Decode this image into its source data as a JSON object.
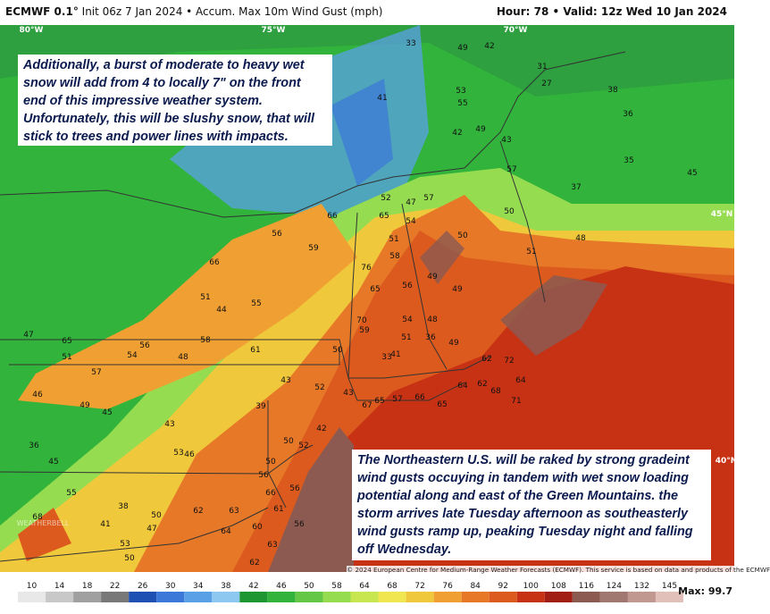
{
  "header": {
    "model": "ECMWF 0.1°",
    "info": "Init 06z 7 Jan 2024 • Accum. Max 10m Wind Gust (mph)",
    "valid": "Hour: 78 • Valid: 12z Wed 10 Jan 2024"
  },
  "annotations": [
    "Additionally, a burst of moderate to heavy wet snow will add from 4 to locally 7\" on the front end of this impressive weather system. Unfortunately, this will be slushy snow, that will stick to trees and power lines with impacts.",
    "The Northeastern U.S. will be raked by strong gradeint wind gusts occuying in tandem with wet snow loading potential along and east of the Green Mountains. the storm arrives late Tuesday afternoon as southeasterly wind gusts ramp up, peaking Tuesday night and falling off Wednesday."
  ],
  "grid_labels": [
    "80°W",
    "75°W",
    "70°W",
    "45°N",
    "40°N"
  ],
  "map_values": [
    33,
    49,
    42,
    31,
    27,
    53,
    55,
    41,
    49,
    42,
    43,
    38,
    36,
    35,
    45,
    37,
    57,
    48,
    51,
    50,
    50,
    47,
    57,
    52,
    65,
    54,
    51,
    58,
    76,
    65,
    56,
    49,
    49,
    70,
    59,
    54,
    48,
    51,
    36,
    49,
    50,
    33,
    41,
    62,
    72,
    64,
    62,
    68,
    64,
    71,
    65,
    66,
    57,
    65,
    67,
    43,
    66,
    59,
    56,
    66,
    51,
    44,
    55,
    61,
    58,
    48,
    56,
    54,
    57,
    65,
    51,
    47,
    46,
    49,
    45,
    43,
    39,
    43,
    52,
    42,
    52,
    50,
    50,
    56,
    66,
    56,
    61,
    60,
    63,
    62,
    64,
    68,
    38,
    53,
    50,
    47,
    41,
    55,
    45,
    36,
    46,
    53,
    50,
    56,
    63,
    62
  ],
  "logo": "WEATHERBELL",
  "copyright": "© 2024 European Centre for Medium-Range Weather Forecasts (ECMWF). This service is based on data and products of the ECMWF",
  "colorbar": {
    "labels": [
      10,
      14,
      18,
      22,
      26,
      30,
      34,
      38,
      42,
      46,
      50,
      58,
      64,
      68,
      72,
      76,
      84,
      92,
      100,
      108,
      116,
      124,
      132,
      145
    ],
    "colors": [
      "#e8e8e8",
      "#c8c8c8",
      "#a0a0a0",
      "#787878",
      "#1e50b4",
      "#3c78d8",
      "#5aa0e6",
      "#8cc8f0",
      "#1e9632",
      "#32b43c",
      "#64c846",
      "#96dc50",
      "#c8e650",
      "#f0e650",
      "#f0c83c",
      "#f0a032",
      "#e67828",
      "#dc5a1e",
      "#c83214",
      "#a01e14",
      "#8c5a50",
      "#a07870",
      "#c09890",
      "#e0c0b8"
    ]
  },
  "max_label": "Max: 99.7"
}
